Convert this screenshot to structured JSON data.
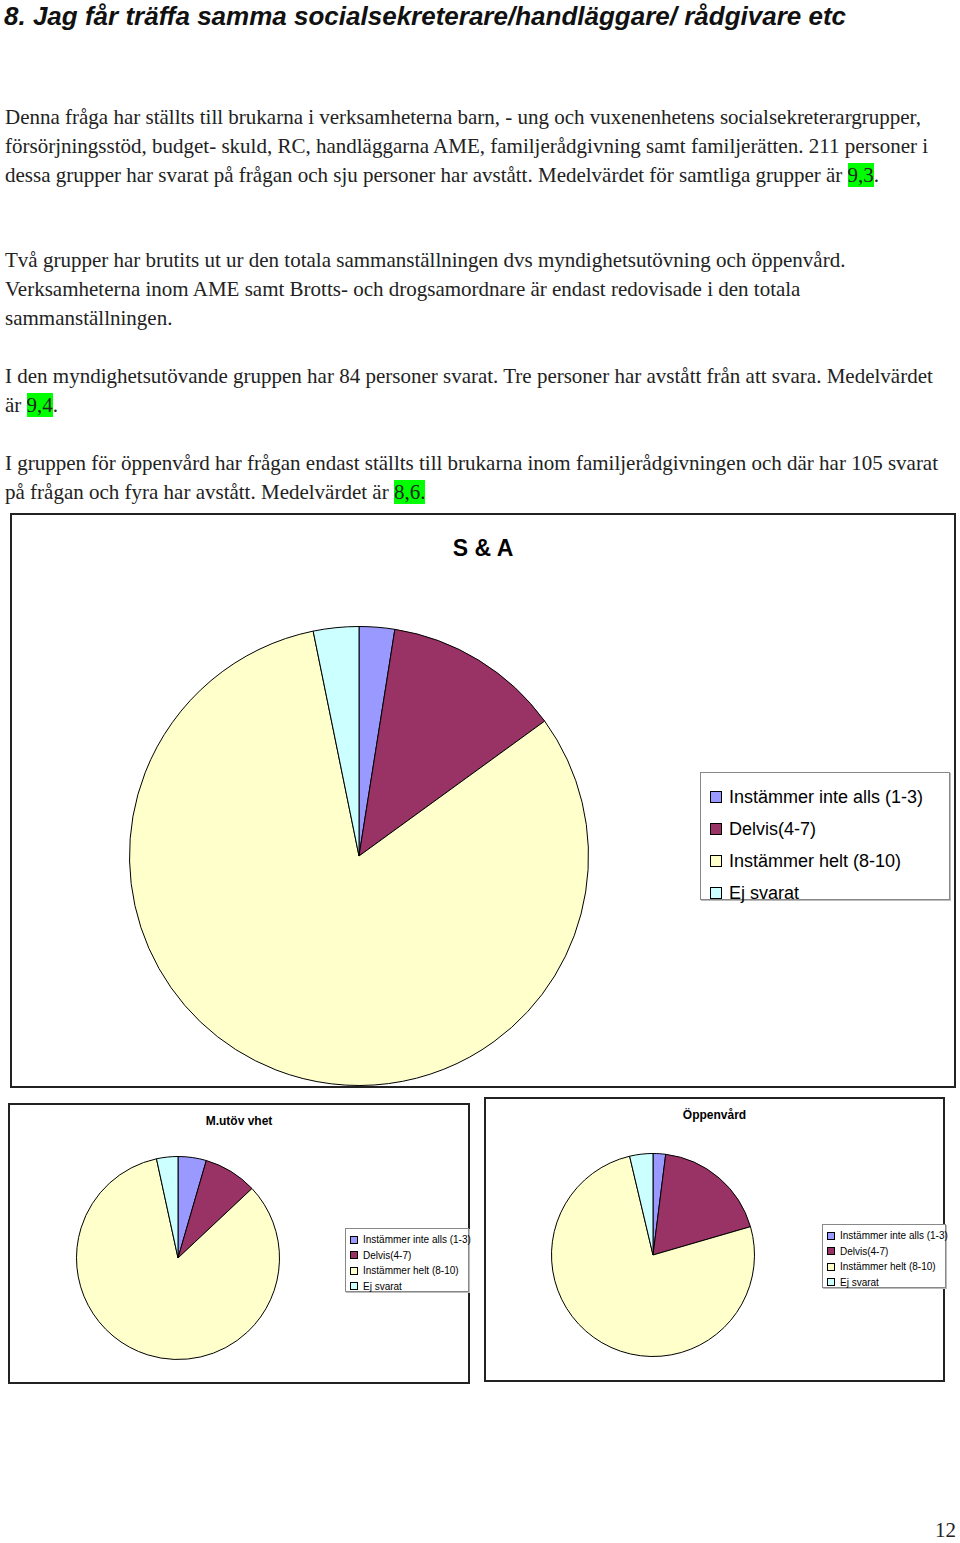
{
  "header": {
    "title": "8. Jag får träffa samma socialsekreterare/handläggare/ rådgivare etc"
  },
  "paragraphs": [
    [
      {
        "text": "Denna fråga har ställts till brukarna i verksamheterna barn, - ung och vuxenenhetens socialsekreterargrupper, försörjningsstöd, budget- skuld, RC, handläggarna AME, familjerådgivning samt familjerätten. 211 personer i dessa grupper har svarat på frågan och sju personer har avstått. Medelvärdet för samtliga grupper är "
      },
      {
        "text": "9,3",
        "highlight": true
      },
      {
        "text": "."
      }
    ],
    [
      {
        "text": "Två grupper har brutits ut ur den totala sammanställningen dvs myndighetsutövning och öppenvård. Verksamheterna inom AME samt Brotts- och drogsamordnare är endast redovisade i den totala sammanställningen."
      }
    ],
    [
      {
        "text": "I den myndighetsutövande gruppen har 84 personer svarat. Tre personer har avstått från att svara. Medelvärdet är "
      },
      {
        "text": "9,4",
        "highlight": true
      },
      {
        "text": "."
      }
    ],
    [
      {
        "text": "I gruppen för öppenvård har frågan endast ställts till brukarna inom familjerådgivningen och där har 105 svarat på frågan och fyra har avstått. Medelvärdet är "
      },
      {
        "text": "8,6.",
        "highlight": true
      }
    ]
  ],
  "chart_data": [
    {
      "type": "pie",
      "title": "S & A",
      "categories": [
        "Instämmer inte alls (1-3)",
        "Delvis(4-7)",
        "Instämmer helt (8-10)",
        "Ej svarat"
      ],
      "values": [
        2.5,
        12.5,
        81.8,
        3.2
      ],
      "colors": [
        "#9999ff",
        "#993366",
        "#ffffcc",
        "#ccffff"
      ],
      "legend": "right"
    },
    {
      "type": "pie",
      "title": "M.utöv vhet",
      "categories": [
        "Instämmer inte alls (1-3)",
        "Delvis(4-7)",
        "Instämmer helt (8-10)",
        "Ej svarat"
      ],
      "values": [
        4.5,
        8.5,
        83.6,
        3.4
      ],
      "colors": [
        "#9999ff",
        "#993366",
        "#ffffcc",
        "#ccffff"
      ],
      "legend": "right"
    },
    {
      "type": "pie",
      "title": "Öppenvård",
      "categories": [
        "Instämmer inte alls (1-3)",
        "Delvis(4-7)",
        "Instämmer helt (8-10)",
        "Ej svarat"
      ],
      "values": [
        2.0,
        18.5,
        75.8,
        3.7
      ],
      "colors": [
        "#9999ff",
        "#993366",
        "#ffffcc",
        "#ccffff"
      ],
      "legend": "right"
    }
  ],
  "page_number": "12"
}
